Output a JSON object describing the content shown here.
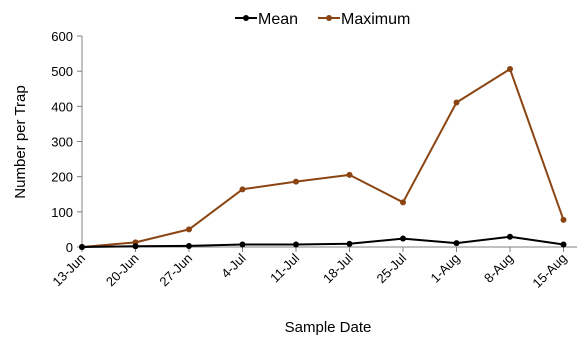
{
  "chart_data": {
    "type": "line",
    "title": "",
    "xlabel": "Sample Date",
    "ylabel": "Number per Trap",
    "categories": [
      "13-Jun",
      "20-Jun",
      "27-Jun",
      "4-Jul",
      "11-Jul",
      "18-Jul",
      "25-Jul",
      "1-Aug",
      "8-Aug",
      "15-Aug"
    ],
    "ylim": [
      0,
      600
    ],
    "yticks": [
      "0",
      "100",
      "200",
      "300",
      "400",
      "500",
      "600"
    ],
    "grid": false,
    "legend_position": "top",
    "series": [
      {
        "name": "Mean",
        "color": "#000000",
        "values": [
          0,
          2,
          3,
          7,
          7,
          9,
          24,
          11,
          29,
          7
        ]
      },
      {
        "name": "Maximum",
        "color": "#8B4513",
        "values": [
          0,
          13,
          50,
          164,
          186,
          205,
          127,
          411,
          506,
          77
        ]
      }
    ]
  }
}
